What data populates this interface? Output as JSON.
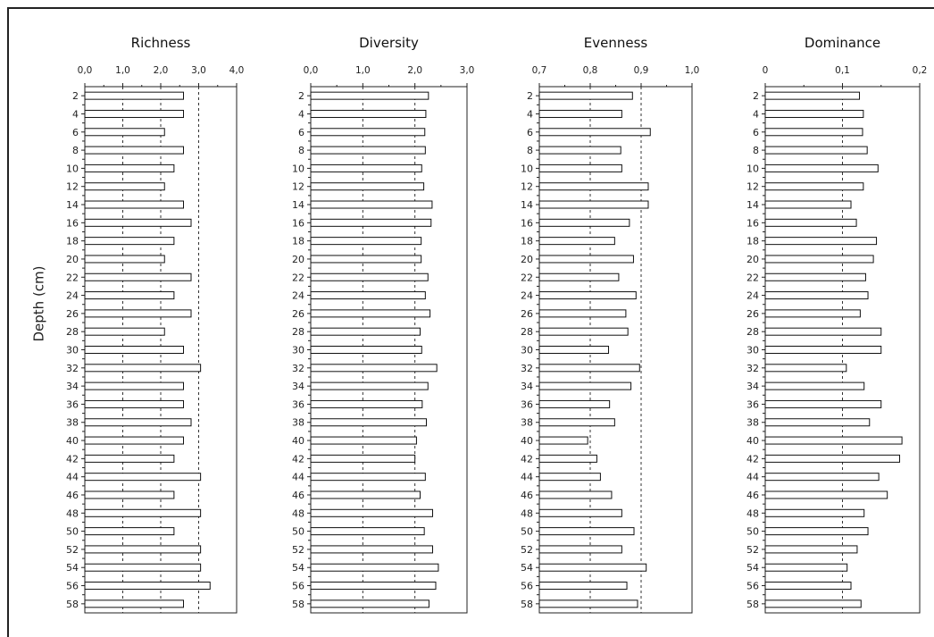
{
  "ylabel": "Depth (cm)",
  "chart_data": [
    {
      "type": "bar",
      "orientation": "horizontal",
      "title": "Richness",
      "xlim": [
        0,
        4
      ],
      "xticks": [
        "0,0",
        "1,0",
        "2,0",
        "3,0",
        "4,0"
      ],
      "xtick_values": [
        0,
        1,
        2,
        3,
        4
      ],
      "gridlines": [
        1,
        2,
        3
      ],
      "categories": [
        "2",
        "4",
        "6",
        "8",
        "10",
        "12",
        "14",
        "16",
        "18",
        "20",
        "22",
        "24",
        "26",
        "28",
        "30",
        "32",
        "34",
        "36",
        "38",
        "40",
        "42",
        "44",
        "46",
        "48",
        "50",
        "52",
        "54",
        "56",
        "58"
      ],
      "values": [
        2.6,
        2.6,
        2.1,
        2.6,
        2.35,
        2.1,
        2.6,
        2.8,
        2.35,
        2.1,
        2.8,
        2.35,
        2.8,
        2.1,
        2.6,
        3.05,
        2.6,
        2.6,
        2.8,
        2.6,
        2.35,
        3.05,
        2.35,
        3.05,
        2.35,
        3.05,
        3.05,
        3.3,
        2.6
      ]
    },
    {
      "type": "bar",
      "orientation": "horizontal",
      "title": "Diversity",
      "xlim": [
        0,
        3
      ],
      "xticks": [
        "0,0",
        "1,0",
        "2,0",
        "3,0"
      ],
      "xtick_values": [
        0,
        1,
        2,
        3
      ],
      "gridlines": [
        1,
        2
      ],
      "categories": [
        "2",
        "4",
        "6",
        "8",
        "10",
        "12",
        "14",
        "16",
        "18",
        "20",
        "22",
        "24",
        "26",
        "28",
        "30",
        "32",
        "34",
        "36",
        "38",
        "40",
        "42",
        "44",
        "46",
        "48",
        "50",
        "52",
        "54",
        "56",
        "58"
      ],
      "values": [
        2.26,
        2.21,
        2.19,
        2.2,
        2.13,
        2.17,
        2.33,
        2.31,
        2.12,
        2.12,
        2.25,
        2.2,
        2.29,
        2.1,
        2.13,
        2.42,
        2.25,
        2.14,
        2.22,
        2.03,
        2.0,
        2.2,
        2.1,
        2.34,
        2.18,
        2.34,
        2.45,
        2.4,
        2.27
      ]
    },
    {
      "type": "bar",
      "orientation": "horizontal",
      "title": "Evenness",
      "xlim": [
        0.7,
        1.0
      ],
      "xticks": [
        "0,7",
        "0,8",
        "0,9",
        "1,0"
      ],
      "xtick_values": [
        0.7,
        0.8,
        0.9,
        1.0
      ],
      "gridlines": [
        0.8,
        0.9
      ],
      "categories": [
        "2",
        "4",
        "6",
        "8",
        "10",
        "12",
        "14",
        "16",
        "18",
        "20",
        "22",
        "24",
        "26",
        "28",
        "30",
        "32",
        "34",
        "36",
        "38",
        "40",
        "42",
        "44",
        "46",
        "48",
        "50",
        "52",
        "54",
        "56",
        "58"
      ],
      "values": [
        0.883,
        0.862,
        0.918,
        0.86,
        0.862,
        0.914,
        0.914,
        0.877,
        0.848,
        0.885,
        0.856,
        0.89,
        0.87,
        0.874,
        0.836,
        0.897,
        0.88,
        0.838,
        0.848,
        0.795,
        0.813,
        0.82,
        0.842,
        0.862,
        0.886,
        0.862,
        0.91,
        0.872,
        0.893
      ]
    },
    {
      "type": "bar",
      "orientation": "horizontal",
      "title": "Dominance",
      "xlim": [
        0,
        0.2
      ],
      "xticks": [
        "0",
        "0,1",
        "0,2"
      ],
      "xtick_values": [
        0,
        0.1,
        0.2
      ],
      "gridlines": [
        0.1
      ],
      "categories": [
        "2",
        "4",
        "6",
        "8",
        "10",
        "12",
        "14",
        "16",
        "18",
        "20",
        "22",
        "24",
        "26",
        "28",
        "30",
        "32",
        "34",
        "36",
        "38",
        "40",
        "42",
        "44",
        "46",
        "48",
        "50",
        "52",
        "54",
        "56",
        "58"
      ],
      "values": [
        0.122,
        0.127,
        0.126,
        0.132,
        0.146,
        0.127,
        0.111,
        0.118,
        0.144,
        0.14,
        0.13,
        0.133,
        0.123,
        0.15,
        0.15,
        0.105,
        0.128,
        0.15,
        0.135,
        0.177,
        0.174,
        0.147,
        0.158,
        0.128,
        0.133,
        0.119,
        0.106,
        0.111,
        0.124
      ]
    }
  ]
}
